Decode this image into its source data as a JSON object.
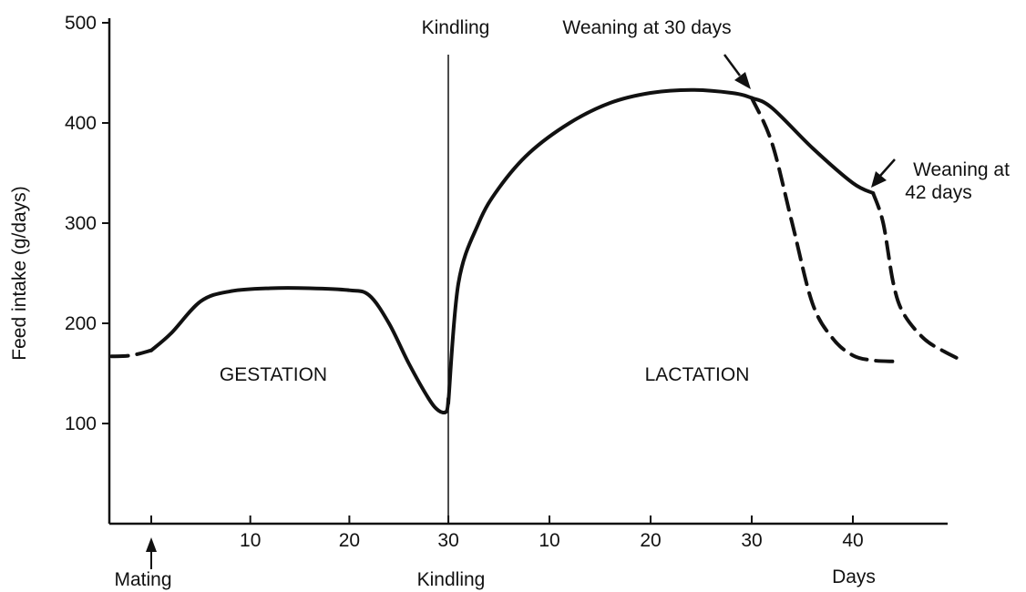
{
  "chart_data": {
    "type": "line",
    "ylabel": "Feed intake (g/days)",
    "yticks": [
      100,
      200,
      300,
      400,
      500
    ],
    "ylim": [
      0,
      500
    ],
    "x_units": "days from mating (gestation) then days from kindling (lactation)",
    "gestation_xticks": [
      10,
      20,
      30
    ],
    "lactation_xticks": [
      10,
      20,
      30,
      40
    ],
    "x_end_label": "Days",
    "mating_label": "Mating",
    "kindling_label": "Kindling",
    "kindling_top_label": "Kindling",
    "region_labels": {
      "gestation": "GESTATION",
      "lactation": "LACTATION"
    },
    "annotations": {
      "wean30": "Weaning at 30 days",
      "wean42_line1": "Weaning at",
      "wean42_line2": "42 days"
    },
    "series": [
      {
        "phase": "pre-mating",
        "style": "dashed",
        "points": [
          [
            -4,
            167
          ],
          [
            -2,
            168
          ],
          [
            0,
            173
          ]
        ]
      },
      {
        "phase": "gestation",
        "style": "solid",
        "points": [
          [
            0,
            173
          ],
          [
            2,
            190
          ],
          [
            5,
            222
          ],
          [
            8,
            232
          ],
          [
            12,
            235
          ],
          [
            16,
            235
          ],
          [
            20,
            233
          ],
          [
            22,
            228
          ],
          [
            24,
            200
          ],
          [
            26,
            160
          ],
          [
            28,
            125
          ],
          [
            29,
            113
          ],
          [
            29.8,
            112
          ],
          [
            30,
            125
          ]
        ]
      },
      {
        "phase": "lactation",
        "style": "solid",
        "points": [
          [
            0,
            120
          ],
          [
            1,
            240
          ],
          [
            3,
            300
          ],
          [
            5,
            335
          ],
          [
            8,
            370
          ],
          [
            12,
            400
          ],
          [
            16,
            420
          ],
          [
            20,
            430
          ],
          [
            24,
            433
          ],
          [
            28,
            430
          ],
          [
            30,
            425
          ],
          [
            32,
            415
          ],
          [
            36,
            375
          ],
          [
            40,
            340
          ],
          [
            42,
            330
          ]
        ]
      },
      {
        "phase": "weaning-30",
        "style": "dashed",
        "points": [
          [
            30,
            425
          ],
          [
            32,
            380
          ],
          [
            34,
            300
          ],
          [
            36,
            220
          ],
          [
            38,
            185
          ],
          [
            40,
            168
          ],
          [
            42,
            163
          ],
          [
            44,
            162
          ]
        ]
      },
      {
        "phase": "weaning-42",
        "style": "dashed",
        "points": [
          [
            42,
            330
          ],
          [
            43,
            300
          ],
          [
            44,
            240
          ],
          [
            45,
            210
          ],
          [
            47,
            185
          ],
          [
            49,
            172
          ],
          [
            51,
            162
          ]
        ]
      }
    ]
  }
}
